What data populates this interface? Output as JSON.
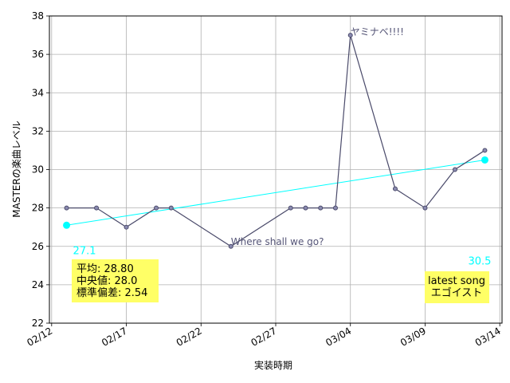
{
  "chart_data": {
    "type": "line",
    "xlabel": "実装時期",
    "ylabel": "MASTERの楽曲レベル",
    "x_ticks": [
      "02/12",
      "02/17",
      "02/22",
      "02/27",
      "03/04",
      "03/09",
      "03/14"
    ],
    "y_ticks": [
      "22",
      "24",
      "26",
      "28",
      "30",
      "32",
      "34",
      "36",
      "38"
    ],
    "xlim": [
      "2023-02-12",
      "2023-03-14"
    ],
    "ylim": [
      22,
      38
    ],
    "grid": true,
    "series": [
      {
        "x": [
          "2023-02-13",
          "2023-02-15",
          "2023-02-17",
          "2023-02-19",
          "2023-02-20",
          "2023-02-24",
          "2023-02-28",
          "2023-03-01",
          "2023-03-02",
          "2023-03-03",
          "2023-03-04",
          "2023-03-07",
          "2023-03-09",
          "2023-03-11",
          "2023-03-13"
        ],
        "values": [
          28,
          28,
          27,
          28,
          28,
          26,
          28,
          28,
          28,
          28,
          37,
          29,
          28,
          30,
          31
        ],
        "color": "#4a4a6a"
      }
    ],
    "trend": {
      "x": [
        "2023-02-13",
        "2023-03-13"
      ],
      "values": [
        27.1,
        30.5
      ],
      "color": "#00ffff",
      "start_label": "27.1",
      "end_label": "30.5"
    },
    "annotations": [
      {
        "text": "ヤミナベ!!!!",
        "x": "2023-03-04",
        "y": 37
      },
      {
        "text": "Where shall we go?",
        "x": "2023-02-24",
        "y": 26
      }
    ],
    "stats_box": {
      "lines": [
        "平均: 28.80",
        "中央値: 28.0",
        "標準偏差:  2.54"
      ],
      "color": "#ffff66"
    },
    "latest_box": {
      "lines": [
        "latest song",
        "エゴイスト"
      ],
      "color": "#ffff66"
    }
  }
}
